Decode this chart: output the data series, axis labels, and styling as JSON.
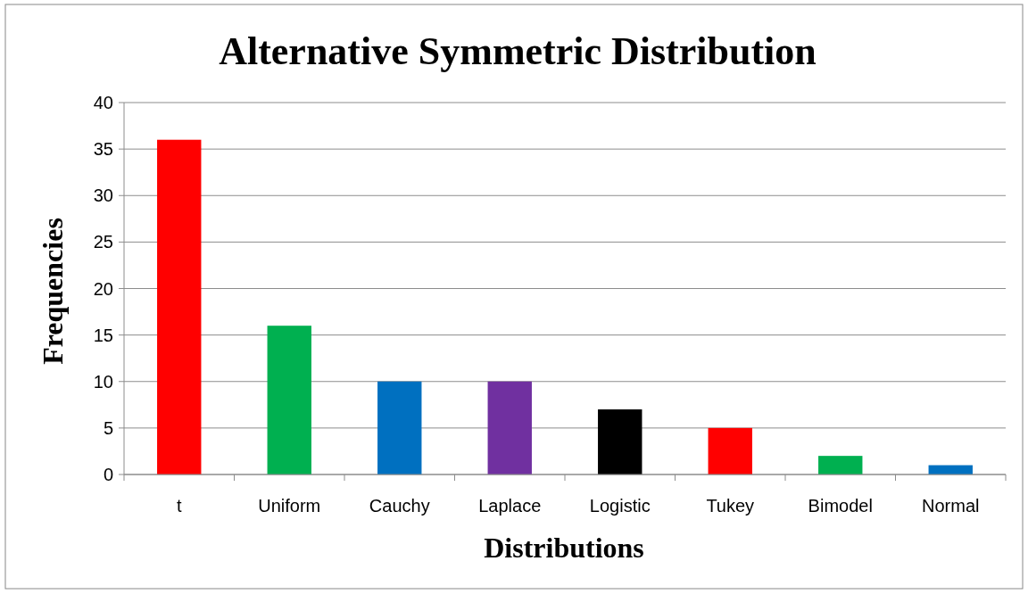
{
  "chart_data": {
    "type": "bar",
    "title": "Alternative Symmetric Distribution",
    "xlabel": "Distributions",
    "ylabel": "Frequencies",
    "categories": [
      "t",
      "Uniform",
      "Cauchy",
      "Laplace",
      "Logistic",
      "Tukey",
      "Bimodel",
      "Normal"
    ],
    "values": [
      36,
      16,
      10,
      10,
      7,
      5,
      2,
      1
    ],
    "colors": [
      "#ff0000",
      "#00b050",
      "#0070c0",
      "#7030a0",
      "#000000",
      "#ff0000",
      "#00b050",
      "#0070c0"
    ],
    "ylim": [
      0,
      40
    ],
    "yticks": [
      0,
      5,
      10,
      15,
      20,
      25,
      30,
      35,
      40
    ],
    "grid": "y"
  }
}
